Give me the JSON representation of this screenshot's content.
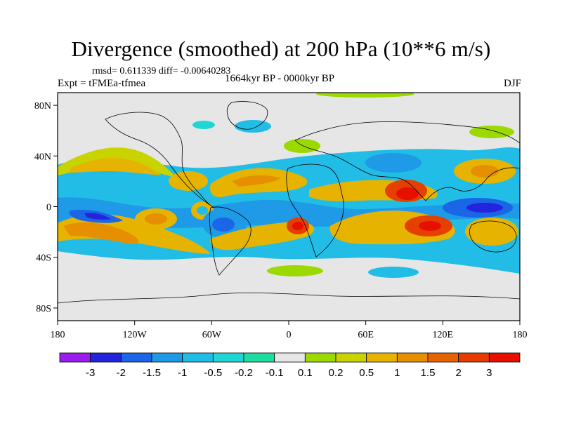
{
  "chart_data": {
    "type": "heatmap",
    "title": "Divergence (smoothed) at 200 hPa (10**6 m/s)",
    "stats_text": "rmsd= 0.611339 diff= -0.00640283",
    "left_label": "Expt = tFMEa-tfmea",
    "center_label": "1664kyr BP - 0000kyr BP",
    "right_label": "DJF",
    "x_ticks": [
      "180",
      "120W",
      "60W",
      "0",
      "60E",
      "120E",
      "180"
    ],
    "y_ticks": [
      "80N",
      "40N",
      "0",
      "40S",
      "80S"
    ],
    "xlim": [
      -180,
      180
    ],
    "ylim": [
      -90,
      90
    ],
    "colorbar": {
      "labels": [
        "-3",
        "-2",
        "-1.5",
        "-1",
        "-0.5",
        "-0.2",
        "-0.1",
        "0.1",
        "0.2",
        "0.5",
        "1",
        "1.5",
        "2",
        "3"
      ],
      "colors": [
        "#9a1df0",
        "#2424de",
        "#1a66e6",
        "#1e9ae6",
        "#22bde6",
        "#20d6d4",
        "#1fdca0",
        "#e6e6e6",
        "#9bd900",
        "#c8d300",
        "#e6b400",
        "#e68f00",
        "#e66400",
        "#e63c00",
        "#e60f00"
      ]
    },
    "regions": [
      {
        "name": "central-pacific-negative",
        "lon": -148,
        "lat": -12,
        "value": -2.0
      },
      {
        "name": "south-pacific-positive",
        "lon": -155,
        "lat": -18,
        "value": 1.5
      },
      {
        "name": "north-pacific-positive",
        "lon": -140,
        "lat": 28,
        "value": 0.5
      },
      {
        "name": "amazon-negative",
        "lon": -60,
        "lat": -12,
        "value": -1.5
      },
      {
        "name": "atlantic-positive",
        "lon": -30,
        "lat": 25,
        "value": 1.0
      },
      {
        "name": "south-atlantic-positive",
        "lon": 10,
        "lat": -18,
        "value": 2.0
      },
      {
        "name": "indian-ocean-positive",
        "lon": 80,
        "lat": 18,
        "value": 2.0
      },
      {
        "name": "maritime-continent-negative",
        "lon": 150,
        "lat": 2,
        "value": -2.0
      },
      {
        "name": "southeast-asia-positive",
        "lon": 110,
        "lat": -18,
        "value": 2.0
      },
      {
        "name": "north-indian-negative",
        "lon": 60,
        "lat": 40,
        "value": -1.0
      }
    ]
  }
}
